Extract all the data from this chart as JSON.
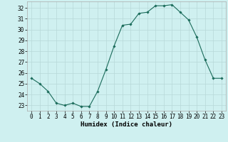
{
  "x": [
    0,
    1,
    2,
    3,
    4,
    5,
    6,
    7,
    8,
    9,
    10,
    11,
    12,
    13,
    14,
    15,
    16,
    17,
    18,
    19,
    20,
    21,
    22,
    23
  ],
  "y": [
    25.5,
    25.0,
    24.3,
    23.2,
    23.0,
    23.2,
    22.9,
    22.9,
    24.3,
    26.3,
    28.5,
    30.4,
    30.5,
    31.5,
    31.6,
    32.2,
    32.2,
    32.3,
    31.6,
    30.9,
    29.3,
    27.2,
    25.5,
    25.5
  ],
  "line_color": "#1a6b5a",
  "marker": "D",
  "marker_size": 1.8,
  "bg_color": "#cff0f0",
  "grid_color": "#b8d8d8",
  "xlabel": "Humidex (Indice chaleur)",
  "xlabel_fontsize": 6.5,
  "tick_fontsize": 5.5,
  "ylim": [
    22.5,
    32.6
  ],
  "xlim": [
    -0.5,
    23.5
  ],
  "yticks": [
    23,
    24,
    25,
    26,
    27,
    28,
    29,
    30,
    31,
    32
  ],
  "xticks": [
    0,
    1,
    2,
    3,
    4,
    5,
    6,
    7,
    8,
    9,
    10,
    11,
    12,
    13,
    14,
    15,
    16,
    17,
    18,
    19,
    20,
    21,
    22,
    23
  ]
}
